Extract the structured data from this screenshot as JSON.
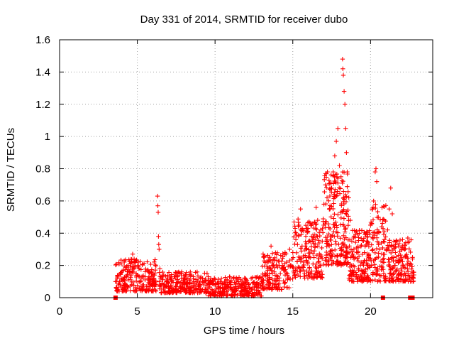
{
  "chart_data": {
    "type": "scatter",
    "title": "Day 331 of 2014, SRMTID for receiver dubo",
    "xlabel": "GPS time / hours",
    "ylabel": "SRMTID / TECUs",
    "xlim": [
      0,
      24
    ],
    "ylim": [
      0,
      1.6
    ],
    "xticks": [
      0,
      5,
      10,
      15,
      20
    ],
    "xtick_labels": [
      "0",
      "5",
      "10",
      "15",
      "20"
    ],
    "yticks": [
      0,
      0.2,
      0.4,
      0.6,
      0.8,
      1.0,
      1.2,
      1.4,
      1.6
    ],
    "ytick_labels": [
      "0",
      "0.2",
      "0.4",
      "0.6",
      "0.8",
      "1",
      "1.2",
      "1.4",
      "1.6"
    ],
    "grid": true,
    "marker": "plus",
    "color": "#ff0000",
    "series": [
      {
        "name": "SRMTID",
        "points": [
          [
            3.6,
            0.1
          ],
          [
            3.7,
            0.12
          ],
          [
            3.8,
            0.08
          ],
          [
            3.9,
            0.15
          ],
          [
            4.0,
            0.11
          ],
          [
            4.1,
            0.17
          ],
          [
            4.2,
            0.09
          ],
          [
            4.3,
            0.13
          ],
          [
            4.4,
            0.2
          ],
          [
            4.5,
            0.16
          ],
          [
            4.6,
            0.22
          ],
          [
            4.7,
            0.27
          ],
          [
            4.8,
            0.19
          ],
          [
            4.9,
            0.23
          ],
          [
            5.0,
            0.14
          ],
          [
            5.1,
            0.18
          ],
          [
            5.2,
            0.1
          ],
          [
            5.3,
            0.13
          ],
          [
            5.4,
            0.08
          ],
          [
            5.5,
            0.11
          ],
          [
            5.6,
            0.07
          ],
          [
            5.7,
            0.12
          ],
          [
            5.8,
            0.09
          ],
          [
            5.9,
            0.15
          ],
          [
            6.0,
            0.1
          ],
          [
            6.1,
            0.14
          ],
          [
            6.2,
            0.08
          ],
          [
            6.3,
            0.63
          ],
          [
            6.32,
            0.57
          ],
          [
            6.34,
            0.53
          ],
          [
            6.36,
            0.38
          ],
          [
            6.38,
            0.33
          ],
          [
            6.4,
            0.3
          ],
          [
            6.45,
            0.18
          ],
          [
            6.5,
            0.12
          ],
          [
            6.6,
            0.09
          ],
          [
            6.7,
            0.14
          ],
          [
            6.8,
            0.07
          ],
          [
            6.9,
            0.11
          ],
          [
            7.0,
            0.06
          ],
          [
            7.2,
            0.1
          ],
          [
            7.4,
            0.13
          ],
          [
            7.6,
            0.09
          ],
          [
            7.8,
            0.15
          ],
          [
            8.0,
            0.12
          ],
          [
            8.2,
            0.08
          ],
          [
            8.4,
            0.11
          ],
          [
            8.6,
            0.13
          ],
          [
            8.8,
            0.09
          ],
          [
            9.0,
            0.07
          ],
          [
            9.2,
            0.12
          ],
          [
            9.4,
            0.06
          ],
          [
            9.6,
            0.09
          ],
          [
            9.8,
            0.05
          ],
          [
            10.0,
            0.08
          ],
          [
            10.2,
            0.06
          ],
          [
            10.4,
            0.09
          ],
          [
            10.6,
            0.05
          ],
          [
            10.8,
            0.07
          ],
          [
            11.0,
            0.08
          ],
          [
            11.2,
            0.04
          ],
          [
            11.4,
            0.06
          ],
          [
            11.6,
            0.09
          ],
          [
            11.8,
            0.05
          ],
          [
            12.0,
            0.07
          ],
          [
            12.2,
            0.06
          ],
          [
            12.4,
            0.09
          ],
          [
            12.6,
            0.08
          ],
          [
            12.8,
            0.12
          ],
          [
            13.0,
            0.1
          ],
          [
            13.2,
            0.15
          ],
          [
            13.4,
            0.18
          ],
          [
            13.5,
            0.25
          ],
          [
            13.6,
            0.32
          ],
          [
            13.7,
            0.2
          ],
          [
            13.8,
            0.16
          ],
          [
            14.0,
            0.12
          ],
          [
            14.2,
            0.15
          ],
          [
            14.4,
            0.19
          ],
          [
            14.6,
            0.22
          ],
          [
            14.8,
            0.3
          ],
          [
            15.0,
            0.28
          ],
          [
            15.2,
            0.36
          ],
          [
            15.4,
            0.45
          ],
          [
            15.5,
            0.55
          ],
          [
            15.6,
            0.42
          ],
          [
            15.8,
            0.32
          ],
          [
            16.0,
            0.25
          ],
          [
            16.2,
            0.38
          ],
          [
            16.4,
            0.47
          ],
          [
            16.5,
            0.56
          ],
          [
            16.6,
            0.48
          ],
          [
            16.8,
            0.42
          ],
          [
            17.0,
            0.58
          ],
          [
            17.1,
            0.7
          ],
          [
            17.2,
            0.62
          ],
          [
            17.4,
            0.55
          ],
          [
            17.5,
            0.68
          ],
          [
            17.6,
            0.78
          ],
          [
            17.7,
            0.88
          ],
          [
            17.8,
            0.97
          ],
          [
            17.9,
            1.05
          ],
          [
            18.0,
            0.82
          ],
          [
            18.1,
            0.75
          ],
          [
            18.2,
            1.48
          ],
          [
            18.22,
            1.42
          ],
          [
            18.25,
            1.38
          ],
          [
            18.3,
            1.28
          ],
          [
            18.35,
            1.2
          ],
          [
            18.4,
            1.05
          ],
          [
            18.45,
            0.9
          ],
          [
            18.5,
            0.78
          ],
          [
            18.6,
            0.62
          ],
          [
            18.7,
            0.48
          ],
          [
            18.8,
            0.35
          ],
          [
            18.9,
            0.2
          ],
          [
            19.0,
            0.25
          ],
          [
            19.2,
            0.31
          ],
          [
            19.4,
            0.22
          ],
          [
            19.6,
            0.28
          ],
          [
            19.8,
            0.35
          ],
          [
            20.0,
            0.45
          ],
          [
            20.1,
            0.55
          ],
          [
            20.2,
            0.6
          ],
          [
            20.3,
            0.78
          ],
          [
            20.35,
            0.8
          ],
          [
            20.4,
            0.72
          ],
          [
            20.5,
            0.5
          ],
          [
            20.6,
            0.3
          ],
          [
            20.8,
            0.22
          ],
          [
            21.0,
            0.3
          ],
          [
            21.1,
            0.42
          ],
          [
            21.2,
            0.55
          ],
          [
            21.3,
            0.68
          ],
          [
            21.4,
            0.52
          ],
          [
            21.5,
            0.35
          ],
          [
            21.6,
            0.28
          ],
          [
            21.8,
            0.32
          ],
          [
            22.0,
            0.25
          ],
          [
            22.2,
            0.3
          ],
          [
            22.4,
            0.37
          ],
          [
            22.5,
            0.2
          ],
          [
            22.6,
            0.15
          ],
          [
            22.7,
            0.24
          ]
        ],
        "cluster_ranges": [
          {
            "x": [
              3.6,
              6.2
            ],
            "y": [
              0.04,
              0.24
            ],
            "n": 200
          },
          {
            "x": [
              6.4,
              9.5
            ],
            "y": [
              0.03,
              0.16
            ],
            "n": 240
          },
          {
            "x": [
              9.5,
              13.0
            ],
            "y": [
              0.01,
              0.13
            ],
            "n": 260
          },
          {
            "x": [
              13.0,
              15.0
            ],
            "y": [
              0.05,
              0.28
            ],
            "n": 150
          },
          {
            "x": [
              15.0,
              17.0
            ],
            "y": [
              0.12,
              0.5
            ],
            "n": 180
          },
          {
            "x": [
              17.0,
              18.6
            ],
            "y": [
              0.2,
              0.78
            ],
            "n": 220
          },
          {
            "x": [
              18.6,
              20.0
            ],
            "y": [
              0.1,
              0.42
            ],
            "n": 150
          },
          {
            "x": [
              20.0,
              21.0
            ],
            "y": [
              0.1,
              0.58
            ],
            "n": 100
          },
          {
            "x": [
              21.0,
              22.8
            ],
            "y": [
              0.1,
              0.36
            ],
            "n": 160
          }
        ],
        "zero_markers": [
          3.6,
          20.8,
          22.55,
          22.7
        ]
      }
    ]
  }
}
